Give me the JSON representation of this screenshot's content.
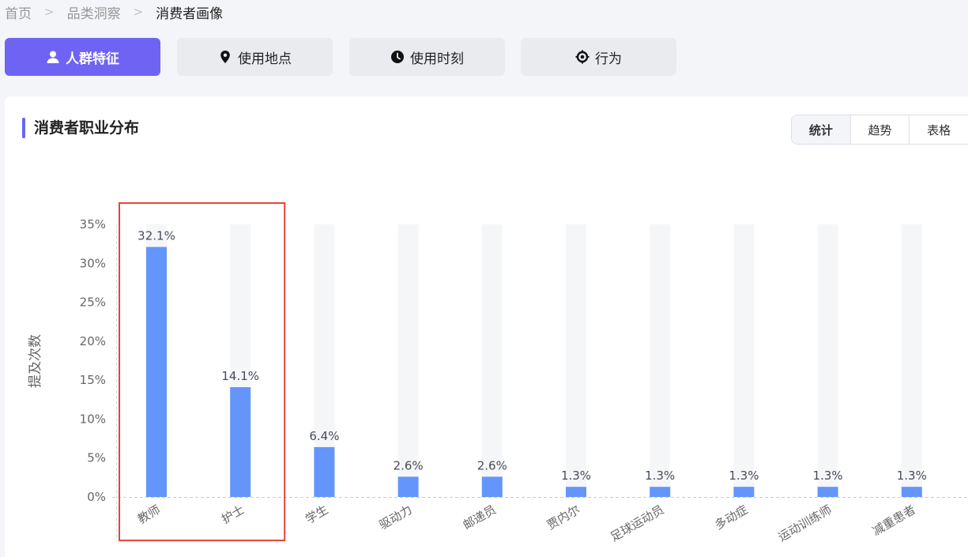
{
  "breadcrumb": {
    "items": [
      "首页",
      "品类洞察",
      "消费者画像"
    ]
  },
  "tabs": [
    {
      "label": "人群特征",
      "icon": "user-icon",
      "active": true
    },
    {
      "label": "使用地点",
      "icon": "location-pin-icon",
      "active": false
    },
    {
      "label": "使用时刻",
      "icon": "clock-icon",
      "active": false
    },
    {
      "label": "行为",
      "icon": "target-icon",
      "active": false
    }
  ],
  "card": {
    "title": "消费者职业分布",
    "view_toggle": [
      "统计",
      "趋势",
      "表格"
    ],
    "active_view": "统计"
  },
  "colors": {
    "accent": "#6f63f4",
    "bar": "#6495fa",
    "track": "#f5f6f8",
    "highlight_box": "#e8443a"
  },
  "chart_data": {
    "type": "bar",
    "ylabel": "提及次数",
    "yticks": [
      "0%",
      "5%",
      "10%",
      "15%",
      "20%",
      "25%",
      "30%",
      "35%"
    ],
    "ylim": [
      0,
      35
    ],
    "categories": [
      "教师",
      "护士",
      "学生",
      "驱动力",
      "邮递员",
      "贾内尔",
      "足球运动员",
      "多动症",
      "运动训练师",
      "减重患者"
    ],
    "values": [
      32.1,
      14.1,
      6.4,
      2.6,
      2.6,
      1.3,
      1.3,
      1.3,
      1.3,
      1.3
    ],
    "value_labels": [
      "32.1%",
      "14.1%",
      "6.4%",
      "2.6%",
      "2.6%",
      "1.3%",
      "1.3%",
      "1.3%",
      "1.3%",
      "1.3%"
    ],
    "highlighted_categories": [
      "教师",
      "护士"
    ],
    "grid": false
  }
}
